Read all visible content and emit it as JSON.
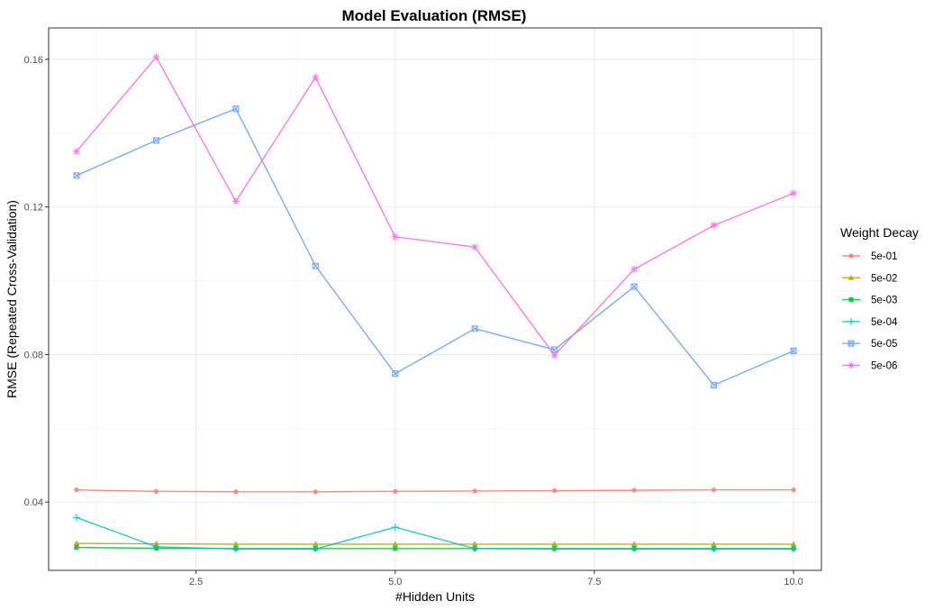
{
  "chart_data": {
    "type": "line",
    "title": "Model Evaluation (RMSE)",
    "xlabel": "#Hidden Units",
    "ylabel": "RMSE (Repeated Cross-Validation)",
    "xlim": [
      0.65,
      10.35
    ],
    "ylim": [
      0.0215,
      0.1685
    ],
    "x_ticks": [
      2.5,
      5.0,
      7.5,
      10.0
    ],
    "x_tick_labels": [
      "2.5",
      "5.0",
      "7.5",
      "10.0"
    ],
    "y_ticks": [
      0.04,
      0.08,
      0.12,
      0.16
    ],
    "y_tick_labels": [
      "0.04",
      "0.08",
      "0.12",
      "0.16"
    ],
    "grid": true,
    "legend_title": "Weight Decay",
    "legend_position": "right",
    "x": [
      1,
      2,
      3,
      4,
      5,
      6,
      7,
      8,
      9,
      10
    ],
    "series": [
      {
        "name": "5e-01",
        "color": "#F8766D",
        "marker": "circle",
        "values": [
          0.0433,
          0.0429,
          0.0428,
          0.0428,
          0.0429,
          0.043,
          0.0431,
          0.0432,
          0.0433,
          0.0433
        ]
      },
      {
        "name": "5e-02",
        "color": "#B79F00",
        "marker": "triangle",
        "values": [
          0.0288,
          0.0287,
          0.0286,
          0.0286,
          0.0286,
          0.0286,
          0.0286,
          0.0286,
          0.0286,
          0.0286
        ]
      },
      {
        "name": "5e-03",
        "color": "#00BA38",
        "marker": "square",
        "values": [
          0.0277,
          0.0275,
          0.0274,
          0.0274,
          0.0274,
          0.0274,
          0.0274,
          0.0274,
          0.0274,
          0.0274
        ]
      },
      {
        "name": "5e-04",
        "color": "#00BFC4",
        "marker": "plus",
        "values": [
          0.0358,
          0.0279,
          0.0273,
          0.0273,
          0.0332,
          0.0274,
          0.0273,
          0.0273,
          0.0273,
          0.0273
        ]
      },
      {
        "name": "5e-05",
        "color": "#619CFF",
        "marker": "boxx",
        "values": [
          0.1285,
          0.138,
          0.1466,
          0.104,
          0.0748,
          0.087,
          0.0813,
          0.0984,
          0.0717,
          0.081
        ]
      },
      {
        "name": "5e-06",
        "color": "#F564E3",
        "marker": "star",
        "values": [
          0.135,
          0.1606,
          0.1215,
          0.1551,
          0.1119,
          0.1091,
          0.0798,
          0.1031,
          0.115,
          0.1237
        ]
      }
    ]
  }
}
